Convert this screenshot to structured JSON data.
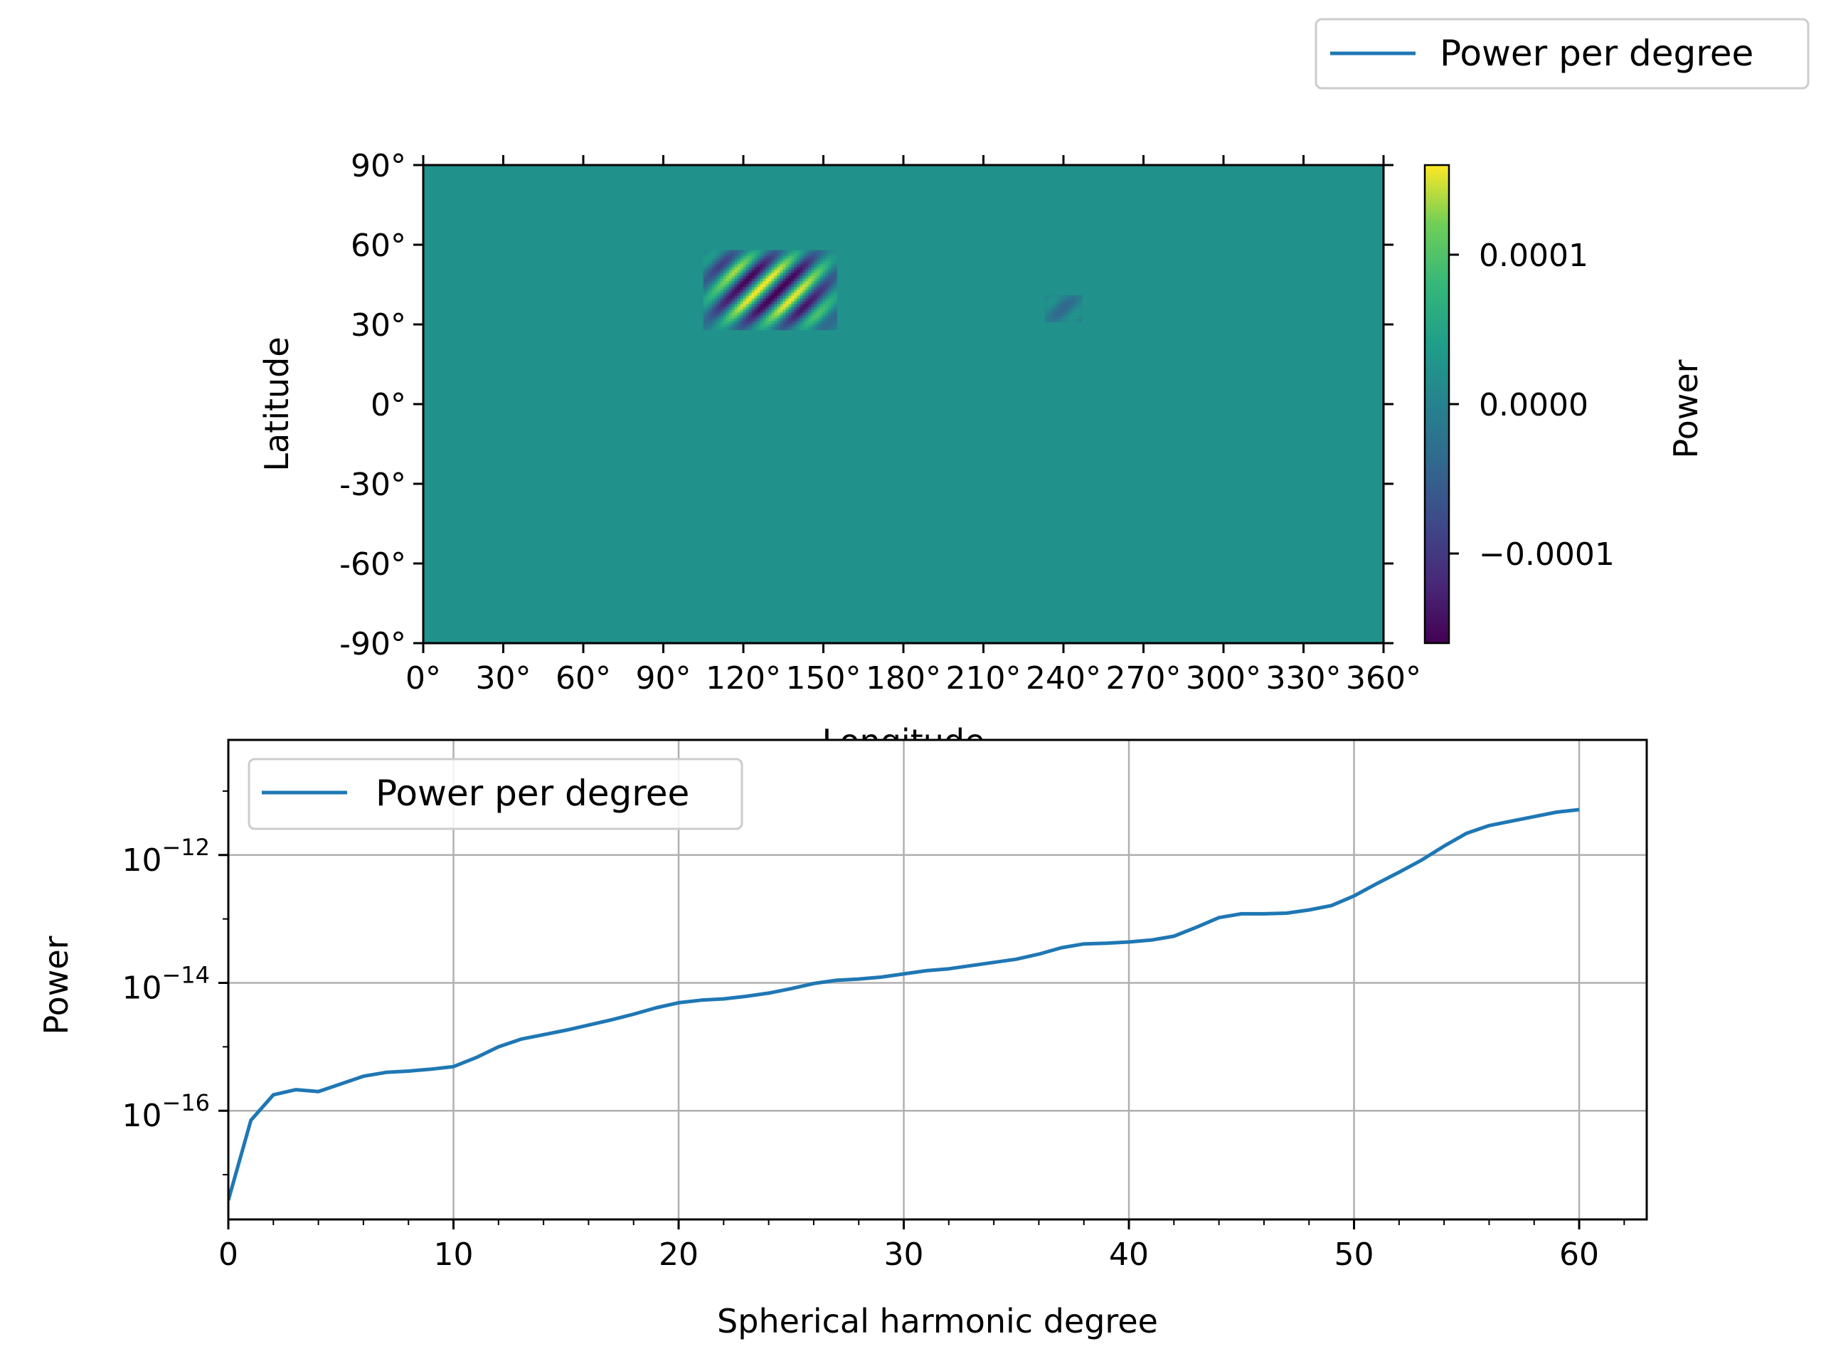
{
  "chart_data": [
    {
      "type": "heatmap",
      "xlabel": "Longitude",
      "ylabel": "Latitude",
      "xlim": [
        0,
        360
      ],
      "ylim": [
        -90,
        90
      ],
      "x_ticks": [
        "0°",
        "30°",
        "60°",
        "90°",
        "120°",
        "150°",
        "180°",
        "210°",
        "240°",
        "270°",
        "300°",
        "330°",
        "360°"
      ],
      "y_ticks": [
        "90°",
        "60°",
        "30°",
        "0°",
        "-30°",
        "-60°",
        "-90°"
      ],
      "x_tick_values": [
        0,
        30,
        60,
        90,
        120,
        150,
        180,
        210,
        240,
        270,
        300,
        330,
        360
      ],
      "y_tick_values": [
        90,
        60,
        30,
        0,
        -30,
        -60,
        -90
      ],
      "colormap": "viridis",
      "colorbar": {
        "label": "Power",
        "range": [
          -0.00016,
          0.00016
        ],
        "tick_labels": [
          "0.0001",
          "0.0000",
          "−0.0001"
        ],
        "tick_values": [
          0.0001,
          0,
          -0.0001
        ]
      },
      "features": [
        {
          "kind": "wave-patch",
          "lon_range": [
            105,
            155
          ],
          "lat_range": [
            28,
            58
          ],
          "amplitude": 0.00016,
          "wavelength_deg": 7
        },
        {
          "kind": "wave-patch",
          "lon_range": [
            233,
            247
          ],
          "lat_range": [
            31,
            41
          ],
          "amplitude": 4e-05,
          "wavelength_deg": 7
        }
      ],
      "legend": {
        "entries": [
          "Power per degree"
        ],
        "placement": "top-right outside"
      }
    },
    {
      "type": "line",
      "xlabel": "Spherical harmonic degree",
      "ylabel": "Power",
      "y_scale": "log",
      "xlim": [
        0,
        63
      ],
      "ylim_log10": [
        -17.7,
        -10.2
      ],
      "x_ticks": [
        "0",
        "10",
        "20",
        "30",
        "40",
        "50",
        "60"
      ],
      "x_tick_values": [
        0,
        10,
        20,
        30,
        40,
        50,
        60
      ],
      "y_ticks": [
        "−12",
        "−14",
        "−16"
      ],
      "y_tick_base": "10",
      "y_tick_exponents": [
        -12,
        -14,
        -16
      ],
      "grid": true,
      "legend": {
        "entries": [
          "Power per degree"
        ],
        "placement": "top-left"
      },
      "color": "#1f77b4",
      "series": [
        {
          "name": "Power per degree",
          "x": [
            0,
            1,
            2,
            3,
            4,
            5,
            6,
            7,
            8,
            9,
            10,
            11,
            12,
            13,
            14,
            15,
            16,
            17,
            18,
            19,
            20,
            21,
            22,
            23,
            24,
            25,
            26,
            27,
            28,
            29,
            30,
            31,
            32,
            33,
            34,
            35,
            36,
            37,
            38,
            39,
            40,
            41,
            42,
            43,
            44,
            45,
            46,
            47,
            48,
            49,
            50,
            51,
            52,
            53,
            54,
            55,
            56,
            57,
            58,
            59,
            60
          ],
          "log10_power": [
            -17.4,
            -16.15,
            -15.75,
            -15.67,
            -15.7,
            -15.58,
            -15.46,
            -15.4,
            -15.38,
            -15.35,
            -15.31,
            -15.17,
            -15.0,
            -14.88,
            -14.81,
            -14.74,
            -14.66,
            -14.58,
            -14.49,
            -14.39,
            -14.31,
            -14.27,
            -14.25,
            -14.21,
            -14.16,
            -14.09,
            -14.01,
            -13.96,
            -13.94,
            -13.91,
            -13.86,
            -13.81,
            -13.78,
            -13.73,
            -13.68,
            -13.63,
            -13.55,
            -13.45,
            -13.39,
            -13.38,
            -13.36,
            -13.33,
            -13.27,
            -13.13,
            -12.98,
            -12.92,
            -12.92,
            -12.91,
            -12.86,
            -12.79,
            -12.64,
            -12.45,
            -12.27,
            -12.08,
            -11.86,
            -11.66,
            -11.54,
            -11.47,
            -11.4,
            -11.33,
            -11.29
          ]
        }
      ]
    }
  ]
}
